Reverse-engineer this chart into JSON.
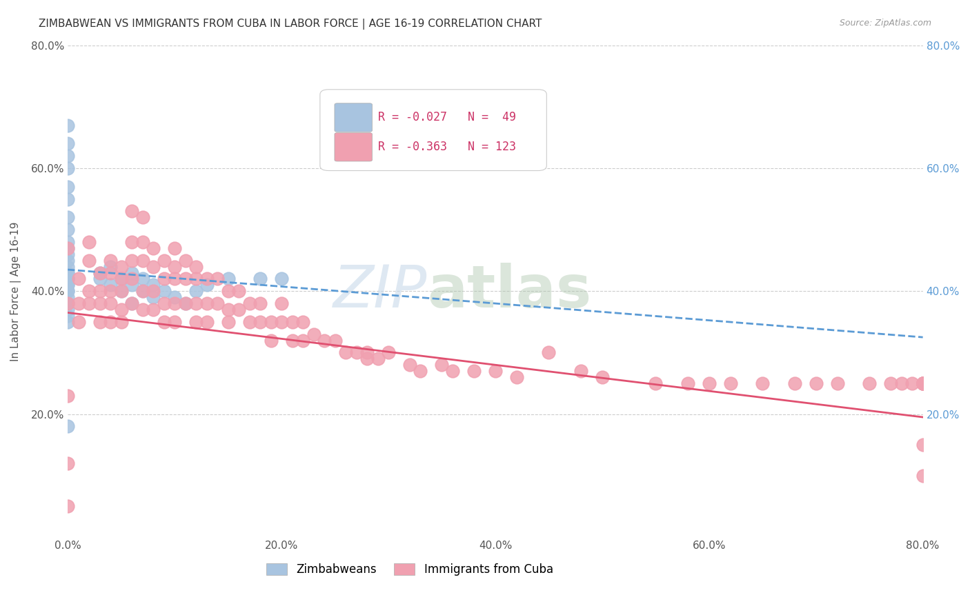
{
  "title": "ZIMBABWEAN VS IMMIGRANTS FROM CUBA IN LABOR FORCE | AGE 16-19 CORRELATION CHART",
  "source": "Source: ZipAtlas.com",
  "ylabel": "In Labor Force | Age 16-19",
  "xlim": [
    0.0,
    0.8
  ],
  "ylim": [
    0.0,
    0.8
  ],
  "xticks": [
    0.0,
    0.2,
    0.4,
    0.6,
    0.8
  ],
  "yticks": [
    0.2,
    0.4,
    0.6,
    0.8
  ],
  "xticklabels": [
    "0.0%",
    "20.0%",
    "40.0%",
    "60.0%",
    "80.0%"
  ],
  "yticklabels": [
    "20.0%",
    "40.0%",
    "60.0%",
    "80.0%"
  ],
  "right_yticks": [
    0.2,
    0.4,
    0.6,
    0.8
  ],
  "right_yticklabels": [
    "20.0%",
    "40.0%",
    "60.0%",
    "80.0%"
  ],
  "grid_color": "#cccccc",
  "background_color": "#ffffff",
  "blue_color": "#a8c4e0",
  "pink_color": "#f0a0b0",
  "blue_line_color": "#5b9bd5",
  "pink_line_color": "#e05070",
  "right_tick_color": "#5b9bd5",
  "legend_R1": "R = -0.027",
  "legend_N1": "N =  49",
  "legend_R2": "R = -0.363",
  "legend_N2": "N = 123",
  "blue_scatter_x": [
    0.0,
    0.0,
    0.0,
    0.0,
    0.0,
    0.0,
    0.0,
    0.0,
    0.0,
    0.0,
    0.0,
    0.0,
    0.0,
    0.0,
    0.0,
    0.0,
    0.0,
    0.0,
    0.0,
    0.0,
    0.0,
    0.0,
    0.0,
    0.0,
    0.0,
    0.0,
    0.0,
    0.0,
    0.03,
    0.03,
    0.04,
    0.04,
    0.05,
    0.05,
    0.06,
    0.06,
    0.06,
    0.07,
    0.07,
    0.08,
    0.08,
    0.09,
    0.1,
    0.11,
    0.12,
    0.13,
    0.15,
    0.18,
    0.2
  ],
  "blue_scatter_y": [
    0.67,
    0.64,
    0.62,
    0.6,
    0.57,
    0.55,
    0.52,
    0.5,
    0.48,
    0.47,
    0.46,
    0.45,
    0.44,
    0.43,
    0.43,
    0.42,
    0.42,
    0.42,
    0.41,
    0.41,
    0.4,
    0.4,
    0.39,
    0.38,
    0.37,
    0.36,
    0.35,
    0.18,
    0.43,
    0.42,
    0.44,
    0.41,
    0.42,
    0.4,
    0.43,
    0.41,
    0.38,
    0.42,
    0.4,
    0.41,
    0.39,
    0.4,
    0.39,
    0.38,
    0.4,
    0.41,
    0.42,
    0.42,
    0.42
  ],
  "pink_scatter_x": [
    0.0,
    0.0,
    0.0,
    0.0,
    0.0,
    0.01,
    0.01,
    0.01,
    0.02,
    0.02,
    0.02,
    0.02,
    0.03,
    0.03,
    0.03,
    0.03,
    0.04,
    0.04,
    0.04,
    0.04,
    0.04,
    0.05,
    0.05,
    0.05,
    0.05,
    0.05,
    0.06,
    0.06,
    0.06,
    0.06,
    0.06,
    0.07,
    0.07,
    0.07,
    0.07,
    0.07,
    0.08,
    0.08,
    0.08,
    0.08,
    0.09,
    0.09,
    0.09,
    0.09,
    0.1,
    0.1,
    0.1,
    0.1,
    0.1,
    0.11,
    0.11,
    0.11,
    0.12,
    0.12,
    0.12,
    0.12,
    0.13,
    0.13,
    0.13,
    0.14,
    0.14,
    0.15,
    0.15,
    0.15,
    0.16,
    0.16,
    0.17,
    0.17,
    0.18,
    0.18,
    0.19,
    0.19,
    0.2,
    0.2,
    0.21,
    0.21,
    0.22,
    0.22,
    0.23,
    0.24,
    0.25,
    0.26,
    0.27,
    0.28,
    0.28,
    0.29,
    0.3,
    0.32,
    0.33,
    0.35,
    0.36,
    0.38,
    0.4,
    0.42,
    0.45,
    0.48,
    0.5,
    0.55,
    0.58,
    0.6,
    0.62,
    0.65,
    0.68,
    0.7,
    0.72,
    0.75,
    0.77,
    0.78,
    0.79,
    0.8,
    0.8,
    0.8,
    0.8,
    0.8,
    0.8,
    0.8,
    0.8,
    0.8,
    0.8,
    0.8,
    0.8,
    0.8,
    0.8
  ],
  "pink_scatter_y": [
    0.47,
    0.38,
    0.23,
    0.12,
    0.05,
    0.42,
    0.38,
    0.35,
    0.48,
    0.45,
    0.4,
    0.38,
    0.43,
    0.4,
    0.38,
    0.35,
    0.45,
    0.43,
    0.4,
    0.38,
    0.35,
    0.44,
    0.42,
    0.4,
    0.37,
    0.35,
    0.53,
    0.48,
    0.45,
    0.42,
    0.38,
    0.52,
    0.48,
    0.45,
    0.4,
    0.37,
    0.47,
    0.44,
    0.4,
    0.37,
    0.45,
    0.42,
    0.38,
    0.35,
    0.47,
    0.44,
    0.42,
    0.38,
    0.35,
    0.45,
    0.42,
    0.38,
    0.44,
    0.42,
    0.38,
    0.35,
    0.42,
    0.38,
    0.35,
    0.42,
    0.38,
    0.4,
    0.37,
    0.35,
    0.4,
    0.37,
    0.38,
    0.35,
    0.38,
    0.35,
    0.35,
    0.32,
    0.38,
    0.35,
    0.35,
    0.32,
    0.35,
    0.32,
    0.33,
    0.32,
    0.32,
    0.3,
    0.3,
    0.29,
    0.3,
    0.29,
    0.3,
    0.28,
    0.27,
    0.28,
    0.27,
    0.27,
    0.27,
    0.26,
    0.3,
    0.27,
    0.26,
    0.25,
    0.25,
    0.25,
    0.25,
    0.25,
    0.25,
    0.25,
    0.25,
    0.25,
    0.25,
    0.25,
    0.25,
    0.25,
    0.25,
    0.25,
    0.25,
    0.25,
    0.25,
    0.25,
    0.25,
    0.25,
    0.25,
    0.25,
    0.25,
    0.15,
    0.1
  ],
  "blue_trendline_x": [
    0.0,
    0.8
  ],
  "blue_trendline_y": [
    0.435,
    0.325
  ],
  "pink_trendline_x": [
    0.0,
    0.8
  ],
  "pink_trendline_y": [
    0.365,
    0.195
  ],
  "watermark_zip": "ZIP",
  "watermark_atlas": "atlas",
  "title_fontsize": 11,
  "axis_label_fontsize": 11,
  "tick_fontsize": 11,
  "legend_fontsize": 12
}
